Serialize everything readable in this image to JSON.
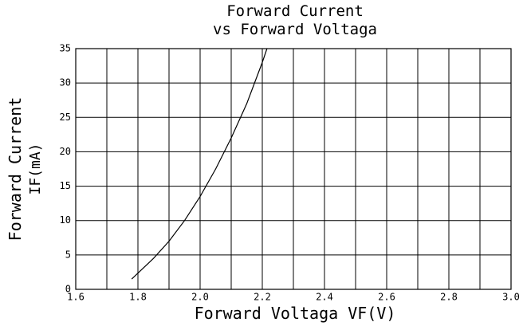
{
  "chart_data": {
    "type": "line",
    "title": [
      "Forward Current",
      "vs Forward Voltaga"
    ],
    "xlabel": "Forward Voltaga VF(V)",
    "ylabel": [
      "Forward Current",
      "IF(mA)"
    ],
    "x": [
      1.78,
      1.85,
      1.9,
      1.95,
      2.0,
      2.05,
      2.1,
      2.15,
      2.2,
      2.215
    ],
    "series": [
      {
        "color": "#000000",
        "values": [
          1.5,
          4.5,
          7,
          10,
          13.5,
          17.5,
          22,
          27,
          33,
          35
        ]
      }
    ],
    "xlim": [
      1.6,
      3.0
    ],
    "xticks": [
      1.6,
      1.8,
      {
        "value": 2,
        "label": "2.0"
      },
      2.2,
      2.4,
      2.6,
      2.8,
      {
        "value": 3,
        "label": "3.0"
      }
    ],
    "xminor": [
      1.7,
      1.9,
      2.1,
      2.3,
      2.5,
      2.7,
      2.9
    ],
    "ylim": [
      0,
      35
    ],
    "yticks": [
      0,
      5,
      10,
      15,
      20,
      25,
      30,
      35
    ],
    "grid": true
  }
}
